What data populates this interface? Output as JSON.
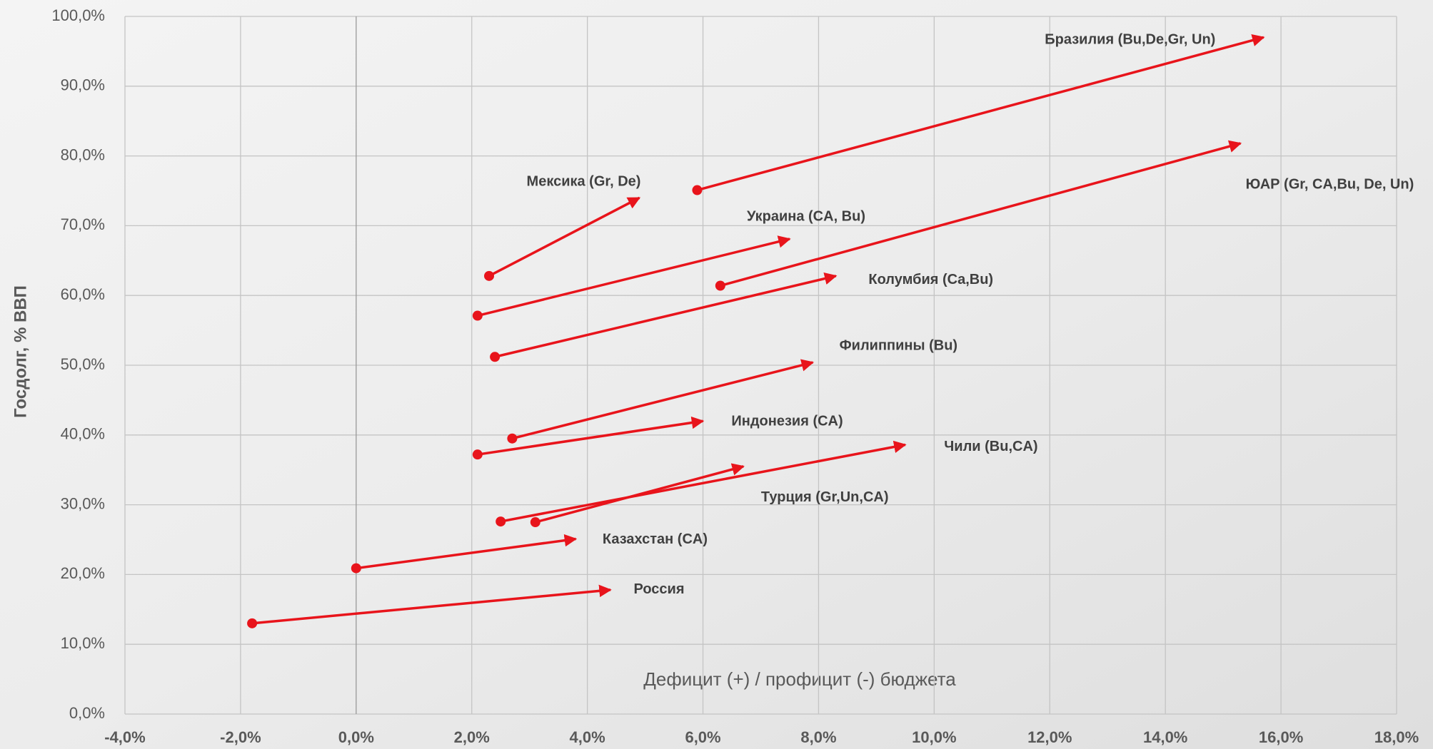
{
  "chart_data": {
    "type": "arrow-scatter",
    "xlabel": "Дефицит (+) / профицит (-) бюджета",
    "ylabel": "Госдолг, % ВВП",
    "color": "#e8141b",
    "grid": true,
    "xlim": [
      -4,
      18
    ],
    "ylim": [
      0,
      100
    ],
    "xticks": [
      {
        "value": -4,
        "label": "-4,0%"
      },
      {
        "value": -2,
        "label": "-2,0%"
      },
      {
        "value": 0,
        "label": "0,0%"
      },
      {
        "value": 2,
        "label": "2,0%"
      },
      {
        "value": 4,
        "label": "4,0%"
      },
      {
        "value": 6,
        "label": "6,0%"
      },
      {
        "value": 8,
        "label": "8,0%"
      },
      {
        "value": 10,
        "label": "10,0%"
      },
      {
        "value": 12,
        "label": "12,0%"
      },
      {
        "value": 14,
        "label": "14,0%"
      },
      {
        "value": 16,
        "label": "16,0%"
      },
      {
        "value": 18,
        "label": "18,0%"
      }
    ],
    "yticks": [
      {
        "value": 0,
        "label": "0,0%"
      },
      {
        "value": 10,
        "label": "10,0%"
      },
      {
        "value": 20,
        "label": "20,0%"
      },
      {
        "value": 30,
        "label": "30,0%"
      },
      {
        "value": 40,
        "label": "40,0%"
      },
      {
        "value": 50,
        "label": "50,0%"
      },
      {
        "value": 60,
        "label": "60,0%"
      },
      {
        "value": 70,
        "label": "70,0%"
      },
      {
        "value": 80,
        "label": "80,0%"
      },
      {
        "value": 90,
        "label": "90,0%"
      },
      {
        "value": 100,
        "label": "100,0%"
      }
    ],
    "series": [
      {
        "name": "Бразилия (Bu,De,Gr, Un)",
        "x": [
          5.9,
          15.7
        ],
        "values": [
          75.1,
          97.0
        ]
      },
      {
        "name": "ЮАР (Gr, CA,Bu, De, Un)",
        "x": [
          6.3,
          15.3
        ],
        "values": [
          61.4,
          81.8
        ]
      },
      {
        "name": "Мексика (Gr, De)",
        "x": [
          2.3,
          4.9
        ],
        "values": [
          62.8,
          74.0
        ]
      },
      {
        "name": "Украина (CA, Bu)",
        "x": [
          2.1,
          7.5
        ],
        "values": [
          57.1,
          68.1
        ]
      },
      {
        "name": "Колумбия (Ca,Bu)",
        "x": [
          2.4,
          8.3
        ],
        "values": [
          51.2,
          62.8
        ]
      },
      {
        "name": "Филиппины (Bu)",
        "x": [
          2.7,
          7.9
        ],
        "values": [
          39.5,
          50.4
        ]
      },
      {
        "name": "Индонезия (CA)",
        "x": [
          2.1,
          6.0
        ],
        "values": [
          37.2,
          42.0
        ]
      },
      {
        "name": "Чили (Bu,CA)",
        "x": [
          2.5,
          9.5
        ],
        "values": [
          27.6,
          38.6
        ]
      },
      {
        "name": "Турция (Gr,Un,CA)",
        "x": [
          3.1,
          6.7
        ],
        "values": [
          27.5,
          35.5
        ]
      },
      {
        "name": "Казахстан (CA)",
        "x": [
          0.0,
          3.8
        ],
        "values": [
          20.9,
          25.1
        ]
      },
      {
        "name": "Россия",
        "x": [
          -1.8,
          4.4
        ],
        "values": [
          13.0,
          17.8
        ]
      }
    ]
  }
}
